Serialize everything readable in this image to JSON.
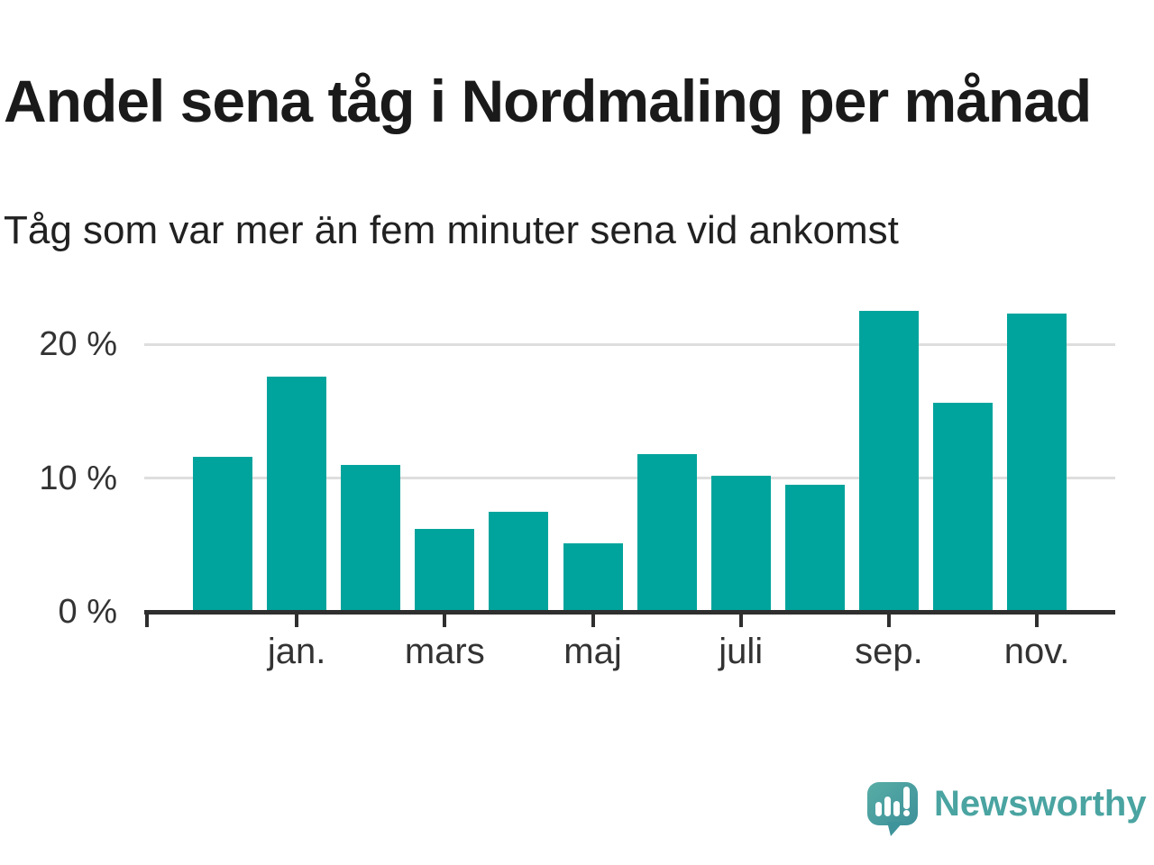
{
  "header": {
    "title": "Andel sena tåg i Nordmaling per månad",
    "subtitle": "Tåg som var mer än fem minuter sena vid ankomst"
  },
  "chart_data": {
    "type": "bar",
    "title": "Andel sena tåg i Nordmaling per månad",
    "subtitle": "Tåg som var mer än fem minuter sena vid ankomst",
    "unit": "%",
    "values": [
      11.6,
      17.6,
      11.0,
      6.2,
      7.5,
      5.1,
      11.8,
      10.2,
      9.5,
      22.5,
      15.6,
      22.3
    ],
    "x_ticks": [
      {
        "bar_index": 1,
        "label": "jan."
      },
      {
        "bar_index": 3,
        "label": "mars"
      },
      {
        "bar_index": 5,
        "label": "maj"
      },
      {
        "bar_index": 7,
        "label": "juli"
      },
      {
        "bar_index": 9,
        "label": "sep."
      },
      {
        "bar_index": 11,
        "label": "nov."
      }
    ],
    "y_ticks": [
      {
        "value": 0,
        "label": "0 %"
      },
      {
        "value": 10,
        "label": "10 %"
      },
      {
        "value": 20,
        "label": "20 %"
      }
    ],
    "gridline_values": [
      10,
      20
    ],
    "ylim": [
      0,
      23.5
    ],
    "grid": "horizontal",
    "legend": "none",
    "bar_color": "#00a49c"
  },
  "footer": {
    "brand": "Newsworthy",
    "brand_color": "#4aa4a1"
  }
}
